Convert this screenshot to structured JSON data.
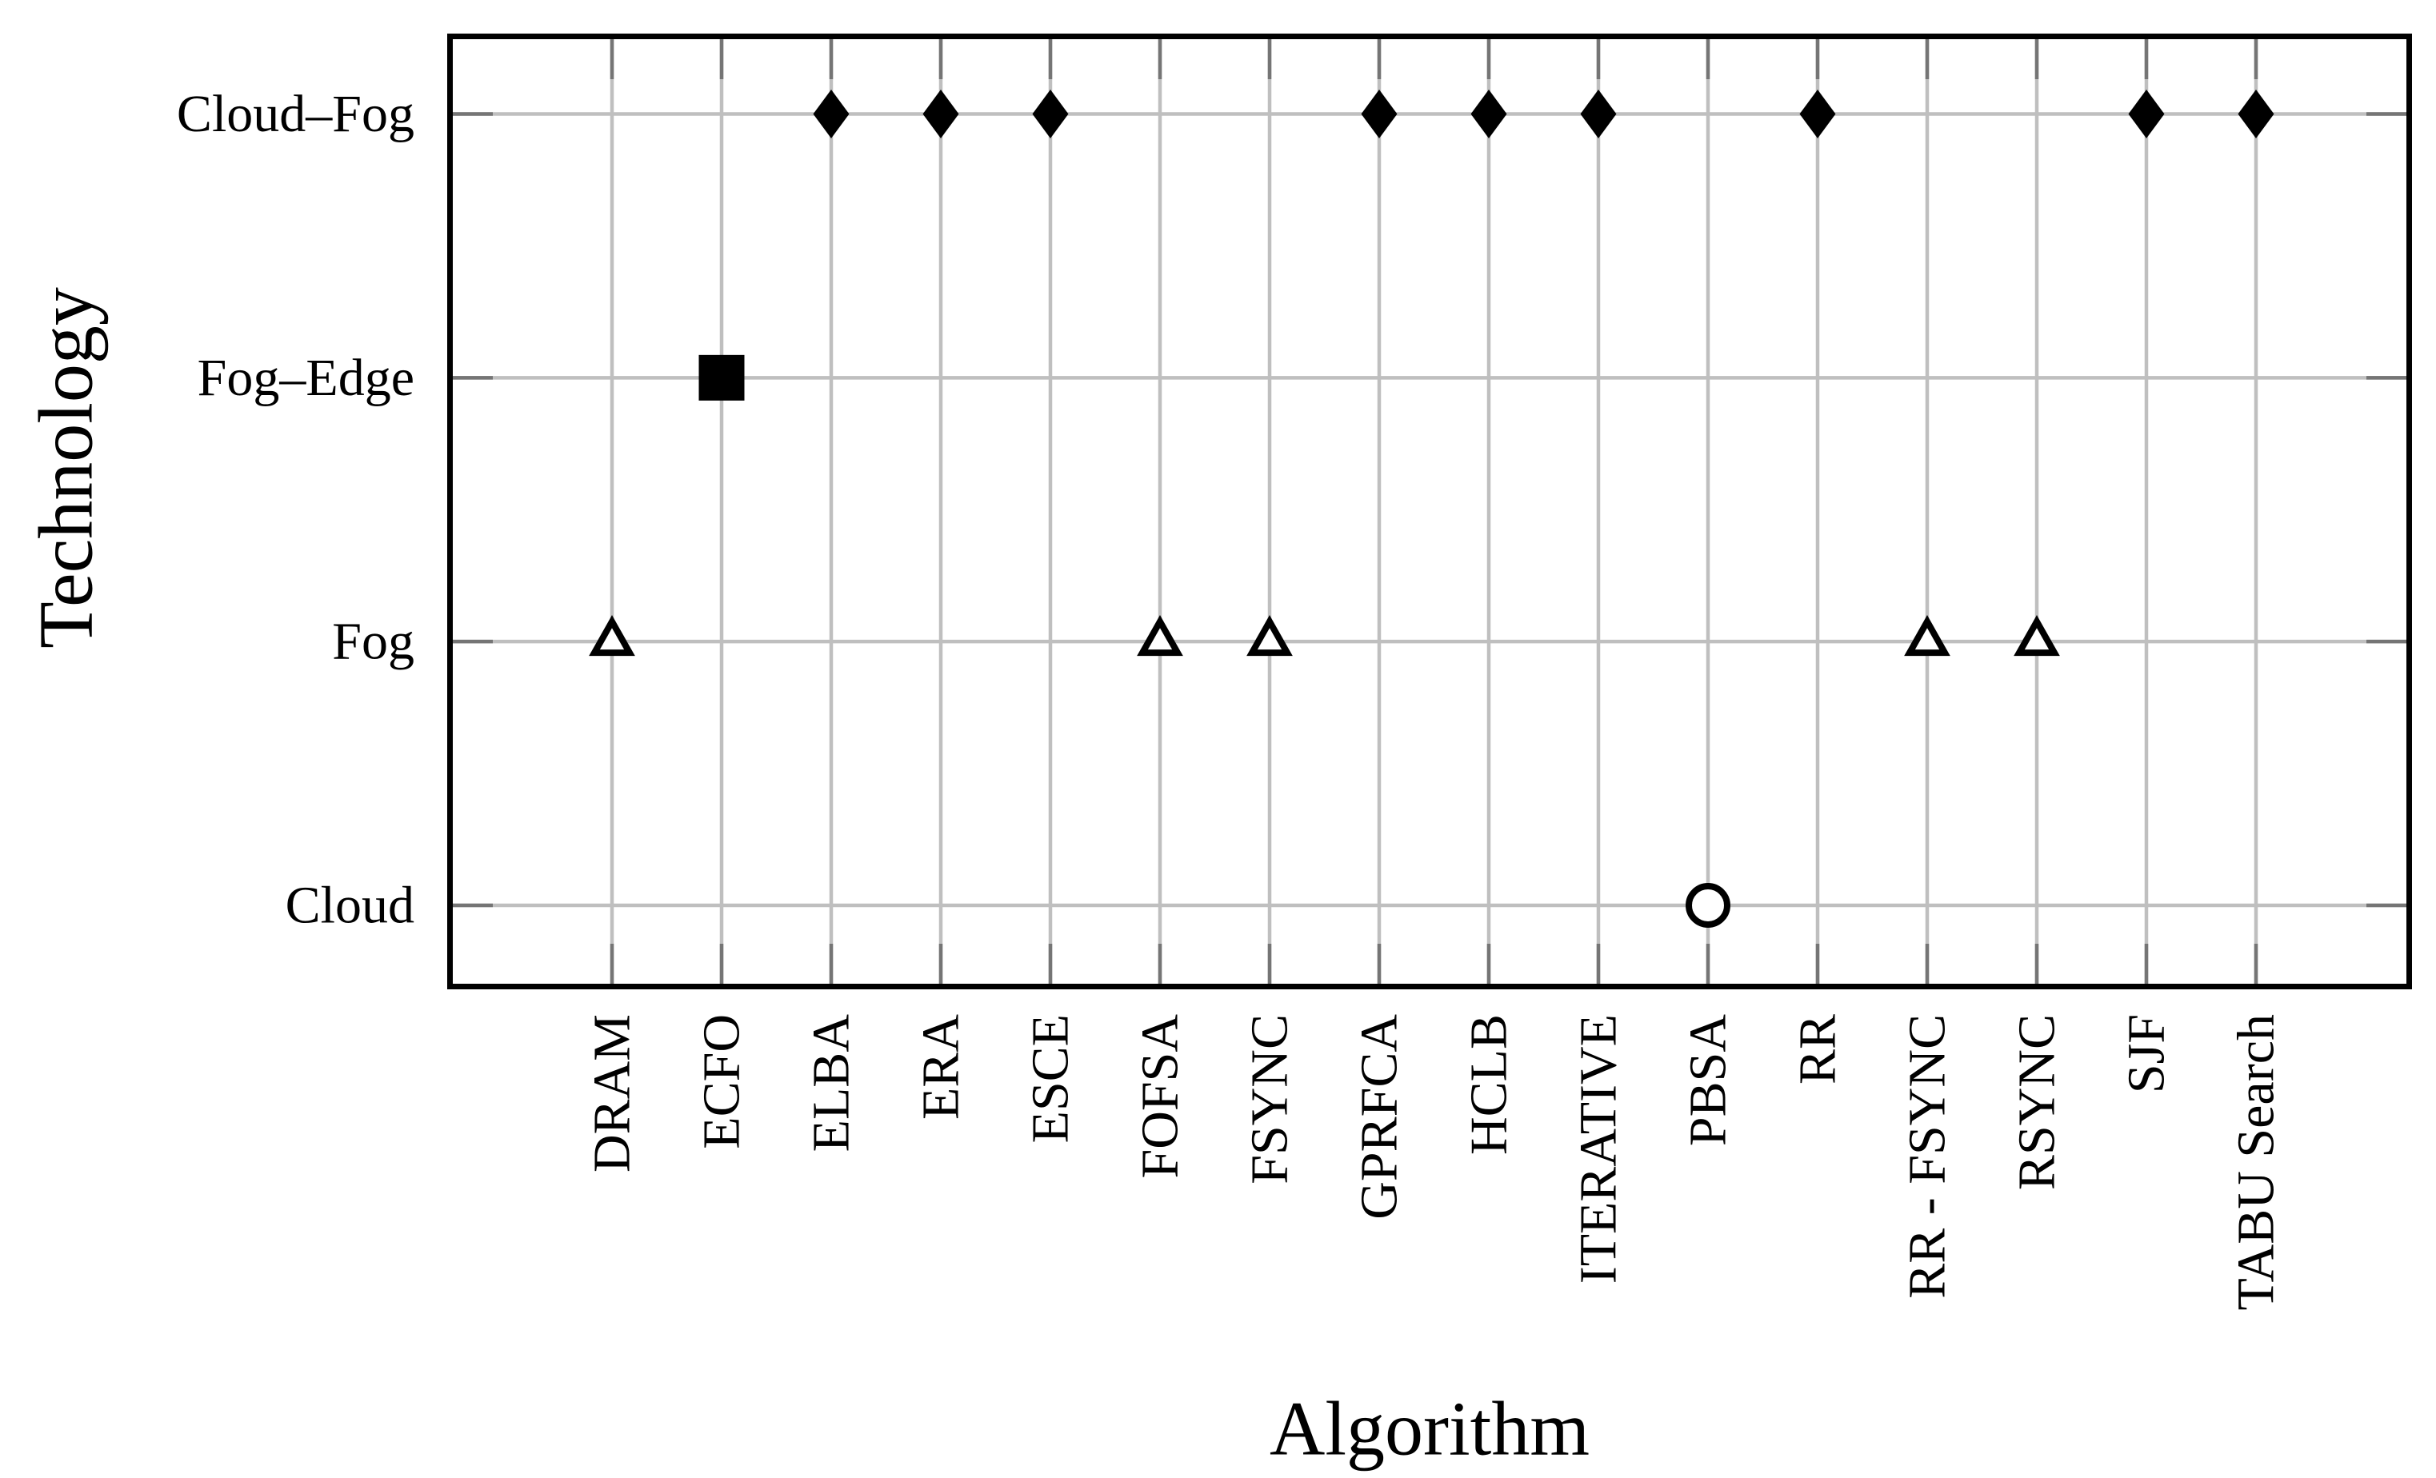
{
  "chart_data": {
    "type": "scatter",
    "title": "",
    "xlabel": "Algorithm",
    "ylabel": "Technology",
    "x_categories": [
      "DRAM",
      "ECFO",
      "ELBA",
      "ERA",
      "ESCE",
      "FOFSA",
      "FSYNC",
      "GPRFCA",
      "HCLB",
      "ITERATIVE",
      "PBSA",
      "RR",
      "RR - FSYNC",
      "RSYNC",
      "SJF",
      "TABU Search"
    ],
    "y_categories": [
      "Cloud",
      "Fog",
      "Fog–Edge",
      "Cloud–Fog"
    ],
    "grid": true,
    "legend": "none",
    "marker_by_technology": {
      "Cloud–Fog": "filled-diamond",
      "Fog–Edge": "filled-square",
      "Fog": "open-triangle",
      "Cloud": "open-circle"
    },
    "points": [
      {
        "x": "DRAM",
        "y": "Fog",
        "marker": "open-triangle"
      },
      {
        "x": "ECFO",
        "y": "Fog–Edge",
        "marker": "filled-square"
      },
      {
        "x": "ELBA",
        "y": "Cloud–Fog",
        "marker": "filled-diamond"
      },
      {
        "x": "ERA",
        "y": "Cloud–Fog",
        "marker": "filled-diamond"
      },
      {
        "x": "ESCE",
        "y": "Cloud–Fog",
        "marker": "filled-diamond"
      },
      {
        "x": "FOFSA",
        "y": "Fog",
        "marker": "open-triangle"
      },
      {
        "x": "FSYNC",
        "y": "Fog",
        "marker": "open-triangle"
      },
      {
        "x": "GPRFCA",
        "y": "Cloud–Fog",
        "marker": "filled-diamond"
      },
      {
        "x": "HCLB",
        "y": "Cloud–Fog",
        "marker": "filled-diamond"
      },
      {
        "x": "ITERATIVE",
        "y": "Cloud–Fog",
        "marker": "filled-diamond"
      },
      {
        "x": "PBSA",
        "y": "Cloud",
        "marker": "open-circle"
      },
      {
        "x": "RR",
        "y": "Cloud–Fog",
        "marker": "filled-diamond"
      },
      {
        "x": "RR - FSYNC",
        "y": "Fog",
        "marker": "open-triangle"
      },
      {
        "x": "RSYNC",
        "y": "Fog",
        "marker": "open-triangle"
      },
      {
        "x": "SJF",
        "y": "Cloud–Fog",
        "marker": "filled-diamond"
      },
      {
        "x": "TABU Search",
        "y": "Cloud–Fog",
        "marker": "filled-diamond"
      }
    ],
    "colors": {
      "marker": "#000000",
      "marker_open_fill": "#ffffff",
      "gridline": "#bfbfbf",
      "tick": "#757575",
      "axis_border": "#000000",
      "background": "#ffffff"
    }
  }
}
